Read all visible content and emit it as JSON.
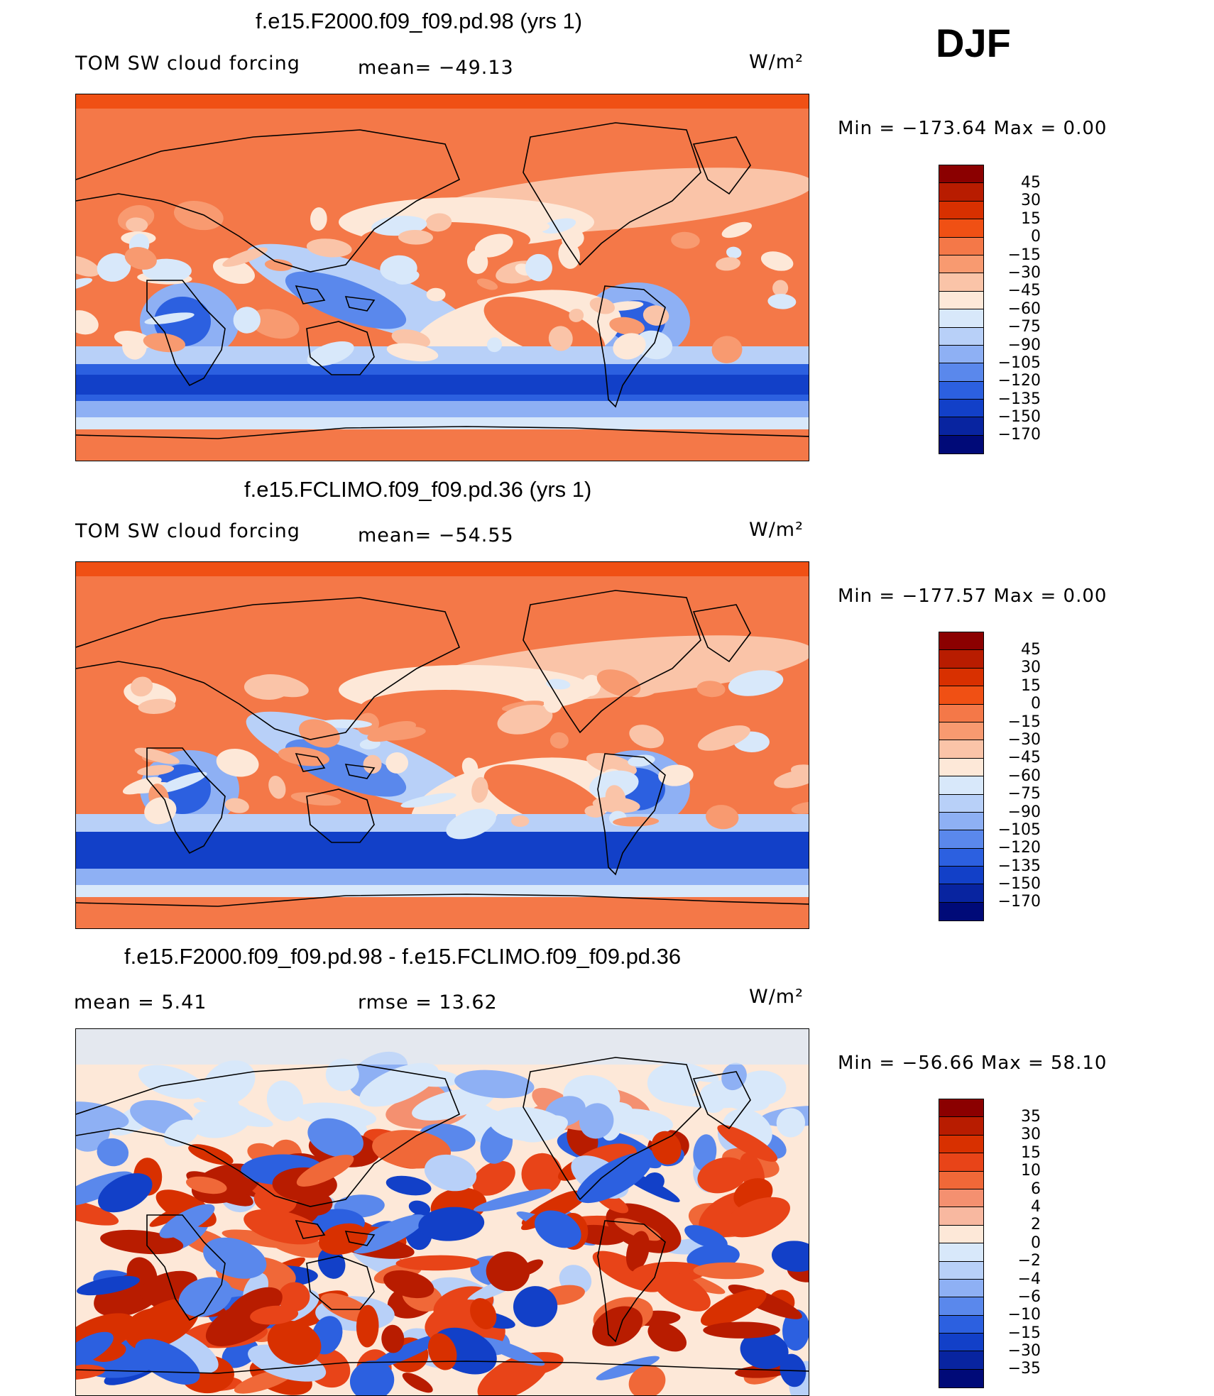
{
  "season": "DJF",
  "panels": [
    {
      "title": "f.e15.F2000.f09_f09.pd.98 (yrs 1)",
      "variable": "TOM SW cloud forcing",
      "stat1": "mean= −49.13",
      "stat2": "",
      "units": "W/m²",
      "minmax": "Min  =  −173.64  Max  =      0.00",
      "map_kind": "field_a",
      "colorbar_labels": [
        "45",
        "30",
        "15",
        "0",
        "−15",
        "−30",
        "−45",
        "−60",
        "−75",
        "−90",
        "−105",
        "−120",
        "−135",
        "−150",
        "−170"
      ],
      "colorbar_colors": [
        "#8b0000",
        "#b81c00",
        "#d83000",
        "#f05014",
        "#f47848",
        "#f89a70",
        "#fac4a8",
        "#fde8d8",
        "#d8e8fa",
        "#b8d0f8",
        "#8eb0f4",
        "#5a88ec",
        "#2c60e0",
        "#1240c8",
        "#0824a0",
        "#000a78"
      ]
    },
    {
      "title": "f.e15.FCLIMO.f09_f09.pd.36 (yrs 1)",
      "variable": "TOM SW cloud forcing",
      "stat1": "mean= −54.55",
      "stat2": "",
      "units": "W/m²",
      "minmax": "Min  =  −177.57  Max  =      0.00",
      "map_kind": "field_b",
      "colorbar_labels": [
        "45",
        "30",
        "15",
        "0",
        "−15",
        "−30",
        "−45",
        "−60",
        "−75",
        "−90",
        "−105",
        "−120",
        "−135",
        "−150",
        "−170"
      ],
      "colorbar_colors": [
        "#8b0000",
        "#b81c00",
        "#d83000",
        "#f05014",
        "#f47848",
        "#f89a70",
        "#fac4a8",
        "#fde8d8",
        "#d8e8fa",
        "#b8d0f8",
        "#8eb0f4",
        "#5a88ec",
        "#2c60e0",
        "#1240c8",
        "#0824a0",
        "#000a78"
      ]
    },
    {
      "title": "f.e15.F2000.f09_f09.pd.98 - f.e15.FCLIMO.f09_f09.pd.36",
      "variable": "mean  =      5.41",
      "stat1": "rmse  =     13.62",
      "stat2": "",
      "units": "W/m²",
      "minmax": "Min  =  −56.66  Max  =    58.10",
      "map_kind": "diff",
      "colorbar_labels": [
        "35",
        "30",
        "15",
        "10",
        "6",
        "4",
        "2",
        "0",
        "−2",
        "−4",
        "−6",
        "−10",
        "−15",
        "−30",
        "−35"
      ],
      "colorbar_colors": [
        "#8b0000",
        "#b81c00",
        "#d83000",
        "#e84418",
        "#f06838",
        "#f49070",
        "#f8b8a0",
        "#fde8d8",
        "#d8e8fa",
        "#b8d0f8",
        "#8eb0f4",
        "#5a88ec",
        "#2c60e0",
        "#1240c8",
        "#0824a0",
        "#000a78"
      ]
    }
  ]
}
